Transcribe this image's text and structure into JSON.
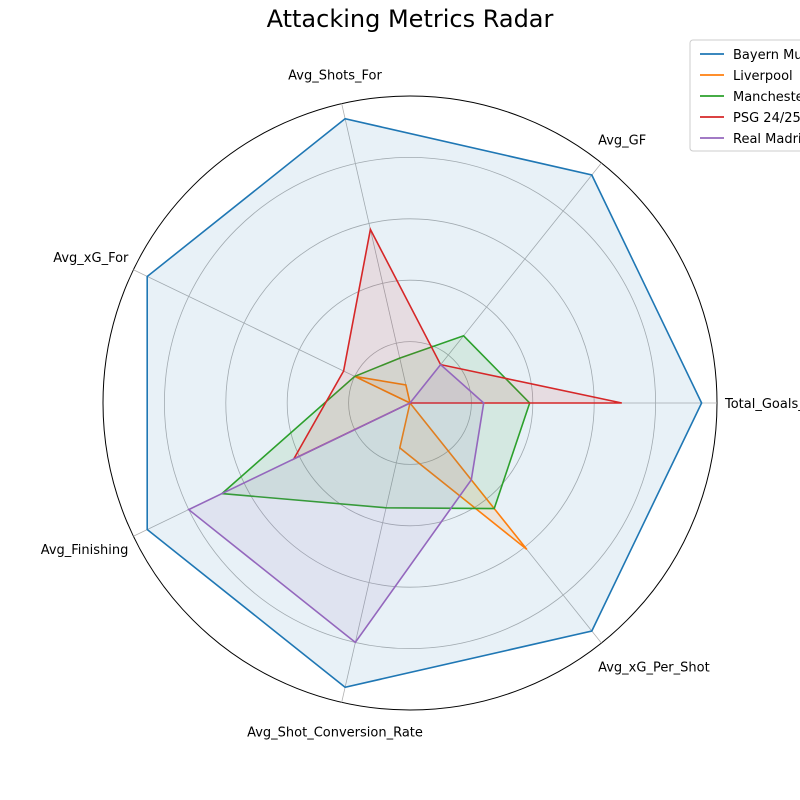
{
  "chart_data": {
    "type": "radar",
    "title": "Attacking Metrics Radar",
    "axes": [
      "Total_Goals_For",
      "Avg_GF",
      "Avg_Shots_For",
      "Avg_xG_For",
      "Avg_Finishing",
      "Avg_Shot_Conversion_Rate",
      "Avg_xG_Per_Shot"
    ],
    "rlim": [
      0,
      1
    ],
    "grid": true,
    "legend_position": "top-right",
    "series": [
      {
        "name": "Bayern Munich",
        "color": "#1f77b4",
        "values": [
          0.95,
          0.95,
          0.95,
          0.95,
          0.95,
          0.95,
          0.95
        ]
      },
      {
        "name": "Liverpool",
        "color": "#ff7f0e",
        "values": [
          0.0,
          0.0,
          0.06,
          0.2,
          0.0,
          0.15,
          0.61
        ]
      },
      {
        "name": "Manchester City",
        "color": "#2ca02c",
        "values": [
          0.39,
          0.28,
          0.15,
          0.2,
          0.68,
          0.35,
          0.44
        ]
      },
      {
        "name": "PSG 24/25",
        "color": "#d62728",
        "values": [
          0.69,
          0.16,
          0.58,
          0.24,
          0.42,
          0.0,
          0.0
        ]
      },
      {
        "name": "Real Madrid",
        "color": "#9467bd",
        "values": [
          0.24,
          0.16,
          0.0,
          0.0,
          0.8,
          0.8,
          0.32
        ]
      }
    ]
  }
}
